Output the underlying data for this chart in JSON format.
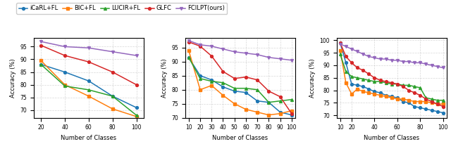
{
  "legend_labels": [
    "iCaRL+FL",
    "BIC+FL",
    "LUCIR+FL",
    "GLFC",
    "FCILPT(ours)"
  ],
  "legend_colors": [
    "#1f77b4",
    "#ff7f0e",
    "#2ca02c",
    "#d62728",
    "#9467bd"
  ],
  "legend_markers": [
    "o",
    "s",
    "^",
    "o",
    "v"
  ],
  "xlabel": "Number of Classes",
  "ylabel": "Accuracy (%)",
  "subplot1": {
    "x": [
      20,
      40,
      60,
      80,
      100
    ],
    "iCarl": [
      88.0,
      85.0,
      81.5,
      75.5,
      71.0
    ],
    "bic": [
      89.5,
      80.0,
      75.5,
      70.5,
      67.5
    ],
    "lucir": [
      88.0,
      79.5,
      78.0,
      75.5,
      68.0
    ],
    "glfc": [
      95.5,
      91.5,
      89.0,
      85.0,
      80.0
    ],
    "fcilpt": [
      97.0,
      95.0,
      94.5,
      93.0,
      91.5
    ],
    "ylim": [
      67,
      98.5
    ],
    "yticks": [
      70,
      75,
      80,
      85,
      90,
      95
    ],
    "xlim": [
      14,
      106
    ],
    "xticks": [
      20,
      40,
      60,
      80,
      100
    ]
  },
  "subplot2": {
    "x": [
      10,
      20,
      30,
      40,
      50,
      60,
      70,
      80,
      90,
      100
    ],
    "iCarl": [
      91.5,
      85.0,
      83.5,
      81.0,
      79.5,
      79.0,
      76.0,
      75.5,
      72.0,
      71.0
    ],
    "bic": [
      94.0,
      80.0,
      81.5,
      78.0,
      75.0,
      73.0,
      72.0,
      71.0,
      71.5,
      72.5
    ],
    "lucir": [
      91.5,
      84.0,
      83.0,
      82.5,
      80.5,
      80.5,
      80.0,
      75.5,
      76.0,
      76.5
    ],
    "glfc": [
      97.0,
      95.5,
      92.0,
      86.5,
      84.0,
      84.5,
      83.5,
      79.5,
      77.5,
      71.5
    ],
    "fcilpt": [
      97.5,
      96.0,
      95.5,
      94.5,
      93.5,
      93.0,
      92.5,
      91.5,
      91.0,
      90.5
    ],
    "ylim": [
      70,
      98.5
    ],
    "yticks": [
      70,
      75,
      80,
      85,
      90,
      95
    ],
    "xlim": [
      7,
      103
    ],
    "xticks": [
      10,
      20,
      30,
      40,
      50,
      60,
      70,
      80,
      90,
      100
    ]
  },
  "subplot3": {
    "x": [
      10,
      15,
      20,
      25,
      30,
      35,
      40,
      45,
      50,
      55,
      60,
      65,
      70,
      75,
      80,
      85,
      90,
      95,
      100
    ],
    "iCarl": [
      99.0,
      91.0,
      82.5,
      82.0,
      81.5,
      80.5,
      79.5,
      79.0,
      78.0,
      77.5,
      77.0,
      75.5,
      75.0,
      73.5,
      73.0,
      72.5,
      72.0,
      71.5,
      71.0
    ],
    "bic": [
      96.0,
      83.0,
      78.5,
      80.5,
      79.5,
      79.0,
      78.5,
      78.0,
      77.5,
      77.0,
      76.5,
      76.5,
      76.0,
      75.5,
      75.5,
      75.5,
      75.0,
      74.5,
      74.5
    ],
    "lucir": [
      94.5,
      87.5,
      85.5,
      85.0,
      84.5,
      84.0,
      83.5,
      83.5,
      83.0,
      82.5,
      82.5,
      82.0,
      82.0,
      81.5,
      81.0,
      77.0,
      76.5,
      76.0,
      76.0
    ],
    "glfc": [
      99.0,
      93.5,
      91.0,
      89.0,
      88.0,
      86.5,
      85.0,
      84.0,
      83.5,
      83.0,
      82.5,
      81.5,
      80.0,
      79.0,
      78.0,
      76.5,
      75.5,
      74.5,
      73.5
    ],
    "fcilpt": [
      98.5,
      97.5,
      96.5,
      95.5,
      94.5,
      93.5,
      93.0,
      92.5,
      92.5,
      92.0,
      92.0,
      91.5,
      91.5,
      91.0,
      91.0,
      90.5,
      90.0,
      89.5,
      89.0
    ],
    "ylim": [
      69,
      101
    ],
    "yticks": [
      70,
      75,
      80,
      85,
      90,
      95,
      100
    ],
    "xlim": [
      7,
      103
    ],
    "xticks": [
      10,
      20,
      40,
      60,
      80,
      100
    ]
  }
}
